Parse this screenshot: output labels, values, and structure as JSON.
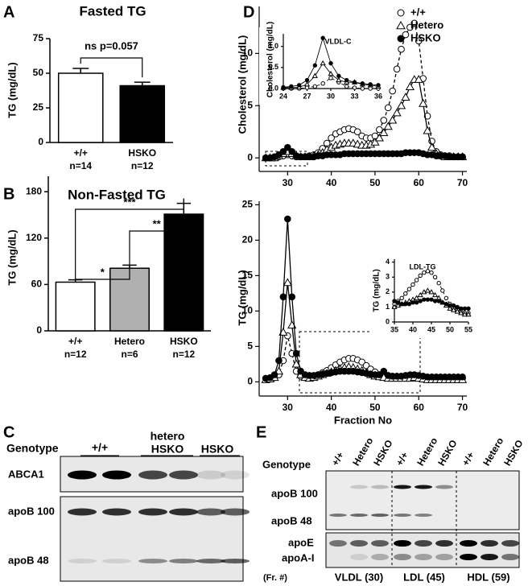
{
  "chart_data": [
    {
      "type": "bar",
      "panel": "A",
      "title": "Fasted TG",
      "ylabel": "TG (mg/dL)",
      "categories": [
        "+/+",
        "HSKO"
      ],
      "sample_sizes": [
        "n=14",
        "n=12"
      ],
      "values": [
        50,
        41
      ],
      "errors": [
        3.5,
        2.5
      ],
      "colors": [
        "#ffffff",
        "#000000"
      ],
      "ylim": [
        0,
        75
      ],
      "yticks": [
        0,
        25,
        50,
        75
      ],
      "annotations": [
        "ns p=0.057"
      ]
    },
    {
      "type": "bar",
      "panel": "B",
      "title": "Non-Fasted TG",
      "ylabel": "TG (mg/dL)",
      "categories": [
        "+/+",
        "Hetero",
        "HSKO"
      ],
      "sample_sizes": [
        "n=12",
        "n=6",
        "n=12"
      ],
      "values": [
        63,
        81,
        151
      ],
      "errors": [
        3,
        4,
        14
      ],
      "colors": [
        "#ffffff",
        "#b0b0b0",
        "#000000"
      ],
      "ylim": [
        0,
        200
      ],
      "yticks": [
        0,
        60,
        120,
        180
      ],
      "annotations": [
        "*",
        "**",
        "***"
      ]
    },
    {
      "type": "line",
      "panel": "D",
      "ylabel": "Cholesterol (mg/dL)",
      "legend": "upper right",
      "x": [
        25,
        26,
        27,
        28,
        29,
        30,
        31,
        32,
        33,
        34,
        35,
        36,
        37,
        38,
        39,
        40,
        41,
        42,
        43,
        44,
        45,
        46,
        47,
        48,
        49,
        50,
        51,
        52,
        53,
        54,
        55,
        56,
        57,
        58,
        59,
        60,
        61,
        62,
        63,
        64,
        65,
        66,
        67,
        68,
        69,
        70
      ],
      "xlim": [
        23.5,
        71
      ],
      "xticks": [
        30,
        40,
        50,
        60,
        70
      ],
      "ylim": [
        -1.3,
        14.5
      ],
      "yticks": [
        0,
        5,
        10
      ],
      "series": [
        {
          "name": "+/+",
          "color": "#000000",
          "marker": "circle-open",
          "dash": true,
          "values": [
            0,
            0,
            0,
            0.1,
            0.2,
            0.3,
            0.2,
            0.1,
            0.1,
            0.1,
            0.2,
            0.3,
            0.5,
            0.9,
            1.4,
            1.9,
            2.3,
            2.5,
            2.7,
            2.8,
            2.7,
            2.5,
            2.1,
            1.9,
            1.9,
            2.1,
            2.7,
            3.6,
            4.8,
            6.4,
            8.5,
            10.4,
            11.8,
            12.5,
            12.9,
            11.2,
            7.6,
            4.0,
            1.6,
            0.6,
            0.3,
            0.2,
            0.2,
            0.1,
            0.1,
            0.1
          ]
        },
        {
          "name": "Hetero",
          "color": "#000000",
          "marker": "triangle-open",
          "dash": false,
          "values": [
            0,
            0,
            0,
            0.2,
            0.4,
            0.6,
            0.4,
            0.2,
            0.1,
            0.1,
            0.1,
            0.2,
            0.3,
            0.5,
            0.8,
            1.0,
            1.2,
            1.3,
            1.4,
            1.4,
            1.4,
            1.3,
            1.2,
            1.2,
            1.3,
            1.5,
            1.9,
            2.4,
            3.0,
            3.6,
            4.3,
            5.0,
            5.8,
            6.8,
            7.5,
            7.5,
            5.2,
            2.6,
            1.0,
            0.4,
            0.2,
            0.1,
            0.1,
            0.1,
            0.1,
            0.1
          ]
        },
        {
          "name": "HSKO",
          "color": "#000000",
          "marker": "circle-filled",
          "dash": false,
          "values": [
            0,
            0,
            0.1,
            0.3,
            0.6,
            1.0,
            0.6,
            0.2,
            0.1,
            0.1,
            0.1,
            0.1,
            0.2,
            0.2,
            0.3,
            0.3,
            0.3,
            0.3,
            0.4,
            0.4,
            0.4,
            0.4,
            0.4,
            0.4,
            0.4,
            0.4,
            0.4,
            0.4,
            0.4,
            0.4,
            0.4,
            0.4,
            0.5,
            0.5,
            0.5,
            0.5,
            0.4,
            0.3,
            0.3,
            0.2,
            0.2,
            0.2,
            0.1,
            0.1,
            0.1,
            0.1
          ]
        }
      ]
    },
    {
      "type": "line",
      "title": "VLDL-C",
      "ylabel": "Cholesterol (mg/dL)",
      "x": [
        24,
        25,
        26,
        27,
        28,
        29,
        30,
        31,
        32,
        33,
        34,
        35,
        36
      ],
      "xlim": [
        24,
        36
      ],
      "xticks": [
        24,
        27,
        30,
        33,
        36
      ],
      "ylim": [
        0,
        1.3
      ],
      "yticks": [
        {
          "value": 0,
          "label": "0.0"
        },
        {
          "value": 0.5,
          "label": "0.5"
        },
        {
          "value": 1,
          "label": "1.0"
        }
      ],
      "series": [
        {
          "color": "#000000",
          "marker": "circle-open",
          "dash": true,
          "values": [
            0,
            0,
            0,
            0.02,
            0.05,
            0.12,
            0.25,
            0.15,
            0.05,
            0.02,
            0,
            0,
            0
          ]
        },
        {
          "color": "#000000",
          "marker": "triangle-open",
          "dash": false,
          "values": [
            0.02,
            0.02,
            0.03,
            0.1,
            0.3,
            0.6,
            0.35,
            0.2,
            0.15,
            0.15,
            0.1,
            0.08,
            0.05
          ]
        },
        {
          "color": "#000000",
          "marker": "circle-filled",
          "dash": false,
          "values": [
            0.03,
            0.05,
            0.08,
            0.2,
            0.55,
            1.2,
            0.6,
            0.3,
            0.2,
            0.15,
            0.12,
            0.1,
            0.08
          ]
        }
      ]
    },
    {
      "type": "line",
      "ylabel": "TG (mg/dL)",
      "xlabel": "Fraction No",
      "x": [
        25,
        26,
        27,
        28,
        29,
        30,
        31,
        32,
        33,
        34,
        35,
        36,
        37,
        38,
        39,
        40,
        41,
        42,
        43,
        44,
        45,
        46,
        47,
        48,
        49,
        50,
        51,
        52,
        53,
        54,
        55,
        56,
        57,
        58,
        59,
        60,
        61,
        62,
        63,
        64,
        65,
        66,
        67,
        68,
        69,
        70
      ],
      "xlim": [
        23.5,
        71
      ],
      "xticks": [
        30,
        40,
        50,
        60,
        70
      ],
      "ylim": [
        -2,
        25.5
      ],
      "yticks": [
        0,
        5,
        10,
        15,
        20,
        25
      ],
      "series": [
        {
          "color": "#000000",
          "marker": "circle-open",
          "dash": true,
          "values": [
            0.5,
            0.5,
            0.6,
            1.0,
            3.0,
            6.5,
            4.0,
            1.5,
            0.8,
            0.6,
            0.6,
            0.8,
            1.0,
            1.3,
            1.6,
            2.0,
            2.4,
            2.8,
            3.1,
            3.3,
            3.3,
            3.1,
            2.8,
            2.3,
            1.8,
            1.4,
            1.0,
            0.8,
            0.7,
            0.6,
            0.6,
            0.6,
            0.6,
            0.7,
            0.8,
            0.7,
            0.6,
            0.5,
            0.5,
            0.5,
            0.5,
            0.5,
            0.5,
            0.5,
            0.5,
            0.5
          ]
        },
        {
          "color": "#000000",
          "marker": "triangle-open",
          "dash": false,
          "values": [
            0.3,
            0.4,
            0.6,
            1.5,
            7.0,
            14.0,
            8.0,
            2.5,
            1.0,
            0.6,
            0.5,
            0.6,
            0.8,
            1.0,
            1.2,
            1.4,
            1.6,
            1.8,
            2.0,
            2.1,
            2.0,
            1.8,
            1.6,
            1.3,
            1.0,
            0.8,
            0.7,
            0.6,
            0.5,
            0.5,
            0.5,
            0.5,
            0.5,
            0.5,
            0.6,
            0.5,
            0.4,
            0.3,
            0.3,
            0.3,
            0.3,
            0.3,
            0.3,
            0.3,
            0.3,
            0.3
          ]
        },
        {
          "color": "#000000",
          "marker": "circle-filled",
          "dash": false,
          "values": [
            0.5,
            0.6,
            1.0,
            3.0,
            12.0,
            23.0,
            12.0,
            4.0,
            1.5,
            1.0,
            0.9,
            0.9,
            1.0,
            1.1,
            1.2,
            1.3,
            1.4,
            1.5,
            1.5,
            1.5,
            1.5,
            1.4,
            1.3,
            1.2,
            1.1,
            1.0,
            1.0,
            1.5,
            0.9,
            0.8,
            0.8,
            0.8,
            0.9,
            1.0,
            1.0,
            0.9,
            0.8,
            0.7,
            0.7,
            0.7,
            0.7,
            0.7,
            0.7,
            0.7,
            0.7,
            0.7
          ]
        }
      ]
    },
    {
      "type": "line",
      "title": "LDL-TG",
      "ylabel": "TG (mg/dL)",
      "x": [
        35,
        36,
        37,
        38,
        39,
        40,
        41,
        42,
        43,
        44,
        45,
        46,
        47,
        48,
        49,
        50,
        51,
        52,
        53,
        54,
        55
      ],
      "xlim": [
        35,
        55
      ],
      "xticks": [
        35,
        40,
        45,
        50,
        55
      ],
      "ylim": [
        0,
        4.2
      ],
      "yticks": [
        0,
        1,
        2,
        3,
        4
      ],
      "series": [
        {
          "color": "#000000",
          "marker": "circle-open",
          "dash": true,
          "values": [
            1.2,
            1.4,
            1.6,
            1.9,
            2.2,
            2.5,
            2.8,
            3.1,
            3.3,
            3.4,
            3.3,
            3.0,
            2.6,
            2.1,
            1.6,
            1.2,
            0.9,
            0.8,
            0.7,
            0.6,
            0.6
          ]
        },
        {
          "color": "#000000",
          "marker": "triangle-open",
          "dash": false,
          "values": [
            1.0,
            1.1,
            1.2,
            1.3,
            1.4,
            1.5,
            1.6,
            1.8,
            2.0,
            2.1,
            2.0,
            1.8,
            1.6,
            1.3,
            1.1,
            0.9,
            0.8,
            0.7,
            0.6,
            0.5,
            0.5
          ]
        },
        {
          "color": "#000000",
          "marker": "circle-filled",
          "dash": false,
          "values": [
            1.4,
            1.3,
            1.2,
            1.2,
            1.2,
            1.3,
            1.3,
            1.4,
            1.5,
            1.5,
            1.5,
            1.4,
            1.4,
            1.3,
            1.2,
            1.1,
            1.1,
            1.0,
            0.9,
            0.9,
            0.9
          ]
        }
      ]
    }
  ],
  "blots": [
    {
      "panel": "C",
      "genotype_label": "Genotype",
      "groups": [
        "+/+",
        [
          "hetero",
          "HSKO"
        ],
        "HSKO"
      ],
      "rows": [
        "ABCA1",
        "apoB 100",
        "apoB 48"
      ]
    },
    {
      "panel": "E",
      "genotype_label": "Genotype",
      "lanes": [
        "+/+",
        "Hetero",
        "HSKO",
        "+/+",
        "Hetero",
        "HSKO",
        "+/+",
        "Hetero",
        "HSKO"
      ],
      "rows": [
        "apoB 100",
        "apoB 48",
        "apoE",
        "apoA-I"
      ],
      "fractions_label": "(Fr. #)",
      "fractions": [
        "VLDL (30)",
        "LDL (45)",
        "HDL (59)"
      ]
    }
  ]
}
